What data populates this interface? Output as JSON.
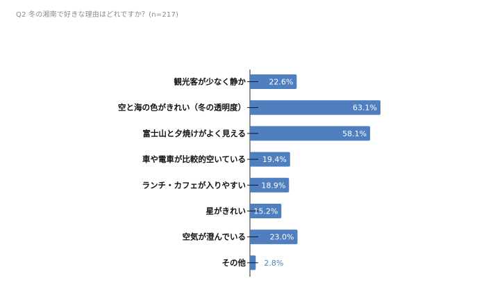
{
  "chart_data": {
    "type": "bar",
    "orientation": "horizontal",
    "title": "Q2 冬の湘南で好きな理由はどれですか？(n=217)",
    "categories": [
      "観光客が少なく静か",
      "空と海の色がきれい（冬の透明度）",
      "富士山と夕焼けがよく見える",
      "車や電車が比較的空いている",
      "ランチ・カフェが入りやすい",
      "星がきれい",
      "空気が澄んでいる",
      "その他"
    ],
    "values": [
      22.6,
      63.1,
      58.1,
      19.4,
      18.9,
      15.2,
      23.0,
      2.8
    ],
    "value_labels": [
      "22.6%",
      "63.1%",
      "58.1%",
      "19.4%",
      "18.9%",
      "15.2%",
      "23.0%",
      "2.8%"
    ],
    "unit": "%",
    "xlim": [
      0,
      100
    ],
    "grid": false,
    "legend": "none",
    "colors": {
      "bar": "#4f7fbf",
      "label_inside": "#ffffff",
      "label_outside": "#4f7fbf",
      "category_text": "#111111",
      "title_text": "#8a8a8a"
    }
  }
}
